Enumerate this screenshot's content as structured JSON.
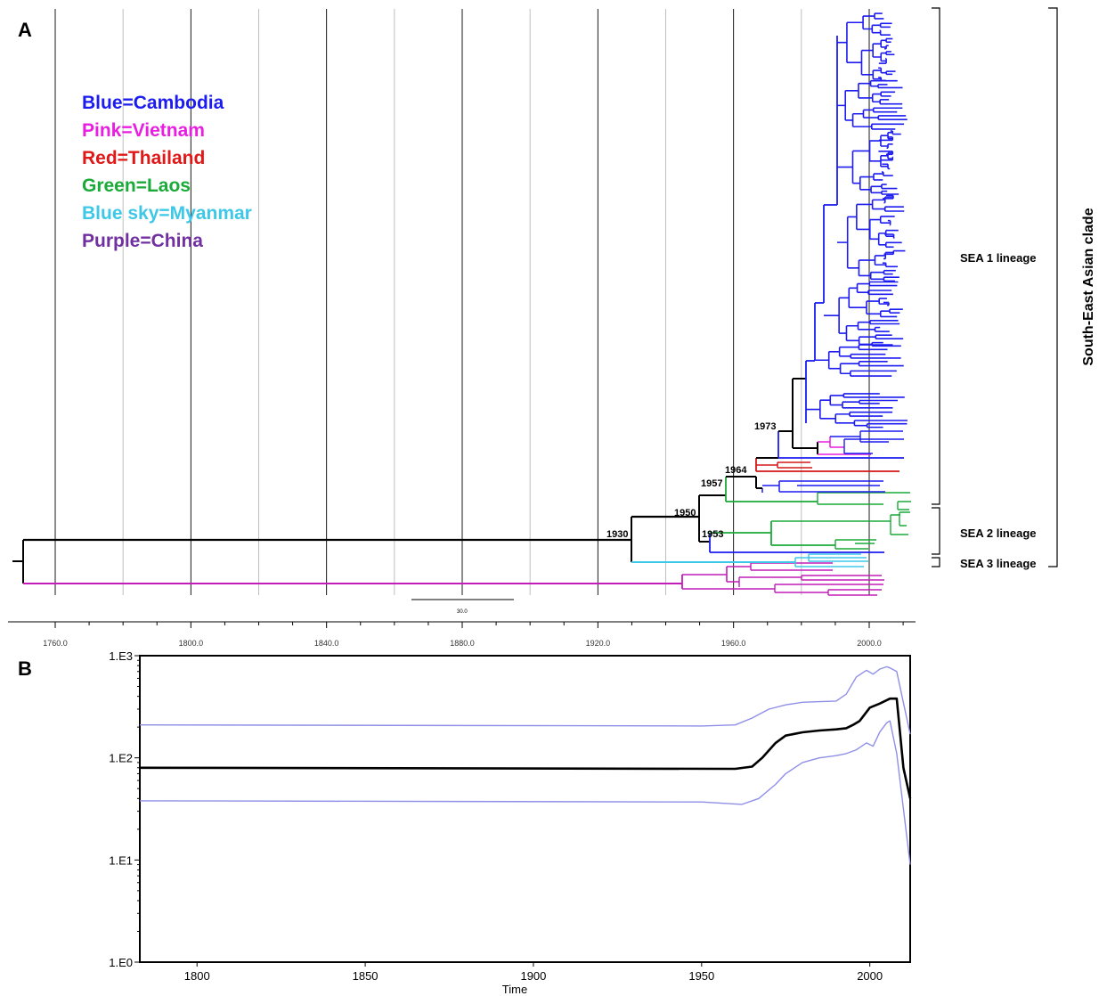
{
  "panel_a": {
    "label": "A",
    "legend": [
      {
        "text": "Blue=Cambodia",
        "color": "#1c1cf0"
      },
      {
        "text": "Pink=Vietnam",
        "color": "#e81ee0"
      },
      {
        "text": "Red=Thailand",
        "color": "#e01818"
      },
      {
        "text": "Green=Laos",
        "color": "#1aaa38"
      },
      {
        "text": "Blue sky=Myanmar",
        "color": "#3ec8e8"
      },
      {
        "text": "Purple=China",
        "color": "#7030a0"
      }
    ],
    "node_labels": [
      "1930",
      "1950",
      "1953",
      "1957",
      "1964",
      "1973"
    ],
    "scale_bar_label": "30.0",
    "lineages": [
      "SEA 1 lineage",
      "SEA 2 lineage",
      "SEA 3 lineage"
    ],
    "clade": "South-East Asian clade"
  },
  "panel_b": {
    "label": "B"
  },
  "chart_data": [
    {
      "type": "tree",
      "title": "",
      "x_axis": {
        "range": [
          1750,
          2012
        ],
        "ticks": [
          "1760.0",
          "1800.0",
          "1840.0",
          "1880.0",
          "1920.0",
          "1960.0",
          "2000.0"
        ],
        "tick_values": [
          1760,
          1800,
          1840,
          1880,
          1920,
          1960,
          2000
        ],
        "major_grid": [
          1760,
          1800,
          1840,
          1880,
          1920,
          1960,
          2000
        ],
        "minor_grid": [
          1780,
          1820,
          1860,
          1900,
          1940,
          1980
        ]
      },
      "tmrca_dates": [
        1930,
        1950,
        1953,
        1957,
        1964,
        1973
      ],
      "colors": {
        "Cambodia": "#1c1cf0",
        "Vietnam": "#e81ee0",
        "Thailand": "#d41818",
        "Laos": "#1aaa38",
        "Myanmar": "#3ec8e8",
        "China": "#c41cb8",
        "ancestral": "#000000"
      }
    },
    {
      "type": "line",
      "title": "",
      "xlabel": "Time",
      "ylabel": "",
      "x_ticks": [
        "1800",
        "1850",
        "1900",
        "1950",
        "2000"
      ],
      "x_tick_values": [
        1800,
        1850,
        1900,
        1950,
        2000
      ],
      "xlim": [
        1783,
        2012
      ],
      "y_scale": "log",
      "y_ticks": [
        "1.E0",
        "1.E1",
        "1.E2",
        "1.E3"
      ],
      "y_tick_values": [
        1,
        10,
        100,
        1000
      ],
      "ylim": [
        1,
        1000
      ],
      "series": [
        {
          "role": "upper 95% HPD",
          "color": "#8f8fe8",
          "x": [
            1783,
            1950,
            1960,
            1965,
            1970,
            1975,
            1980,
            1985,
            1990,
            1993,
            1996,
            1999,
            2001,
            2003,
            2005,
            2006,
            2008,
            2012
          ],
          "y": [
            210,
            205,
            210,
            245,
            300,
            330,
            350,
            355,
            360,
            420,
            620,
            720,
            660,
            740,
            780,
            760,
            700,
            170
          ]
        },
        {
          "role": "median",
          "color": "#000000",
          "x": [
            1783,
            1960,
            1965,
            1968,
            1972,
            1975,
            1980,
            1985,
            1990,
            1993,
            1995,
            1997,
            2000,
            2003,
            2006,
            2008,
            2010,
            2012
          ],
          "y": [
            80,
            78,
            82,
            100,
            140,
            165,
            178,
            185,
            190,
            195,
            210,
            230,
            310,
            340,
            380,
            380,
            80,
            40
          ]
        },
        {
          "role": "lower 95% HPD",
          "color": "#8f8fe8",
          "x": [
            1783,
            1950,
            1962,
            1967,
            1972,
            1975,
            1980,
            1985,
            1990,
            1993,
            1996,
            1999,
            2001,
            2003,
            2005,
            2006,
            2008,
            2012
          ],
          "y": [
            38,
            37,
            35,
            40,
            55,
            70,
            90,
            100,
            105,
            110,
            120,
            140,
            130,
            180,
            220,
            230,
            110,
            9
          ]
        }
      ]
    }
  ]
}
